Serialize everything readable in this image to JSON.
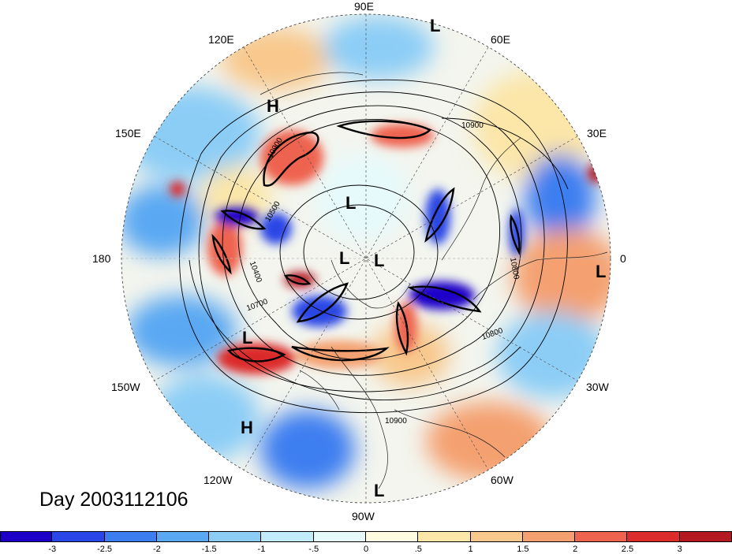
{
  "day_label": "Day 2003112106",
  "longitude_labels": [
    {
      "id": "lon-90e",
      "text": "90E"
    },
    {
      "id": "lon-60e",
      "text": "60E"
    },
    {
      "id": "lon-30e",
      "text": "30E"
    },
    {
      "id": "lon-0",
      "text": "0"
    },
    {
      "id": "lon-30w",
      "text": "30W"
    },
    {
      "id": "lon-60w",
      "text": "60W"
    },
    {
      "id": "lon-90w",
      "text": "90W"
    },
    {
      "id": "lon-120w",
      "text": "120W"
    },
    {
      "id": "lon-150w",
      "text": "150W"
    },
    {
      "id": "lon-180",
      "text": "180"
    },
    {
      "id": "lon-150e",
      "text": "150E"
    },
    {
      "id": "lon-120e",
      "text": "120E"
    }
  ],
  "pressure_labels": [
    "L",
    "H",
    "L",
    "L",
    "L",
    "L",
    "L",
    "H",
    "L"
  ],
  "contour_labels": [
    "10900",
    "10900",
    "10500",
    "10400",
    "10700",
    "10900",
    "10800",
    "10800"
  ],
  "colorbar": {
    "colors": [
      "#1c00c8",
      "#2a46e6",
      "#3c7ef0",
      "#5aa8f2",
      "#8ccdf6",
      "#c2ecfa",
      "#e6fafc",
      "#fffae0",
      "#fce6a8",
      "#f8c88c",
      "#f4a070",
      "#ee6450",
      "#dc2c2c",
      "#b41820"
    ],
    "tick_labels": [
      "-3",
      "-2.5",
      "-2",
      "-1.5",
      "-1",
      "-.5",
      "0",
      ".5",
      "1",
      "1.5",
      "2",
      "2.5",
      "3"
    ]
  }
}
